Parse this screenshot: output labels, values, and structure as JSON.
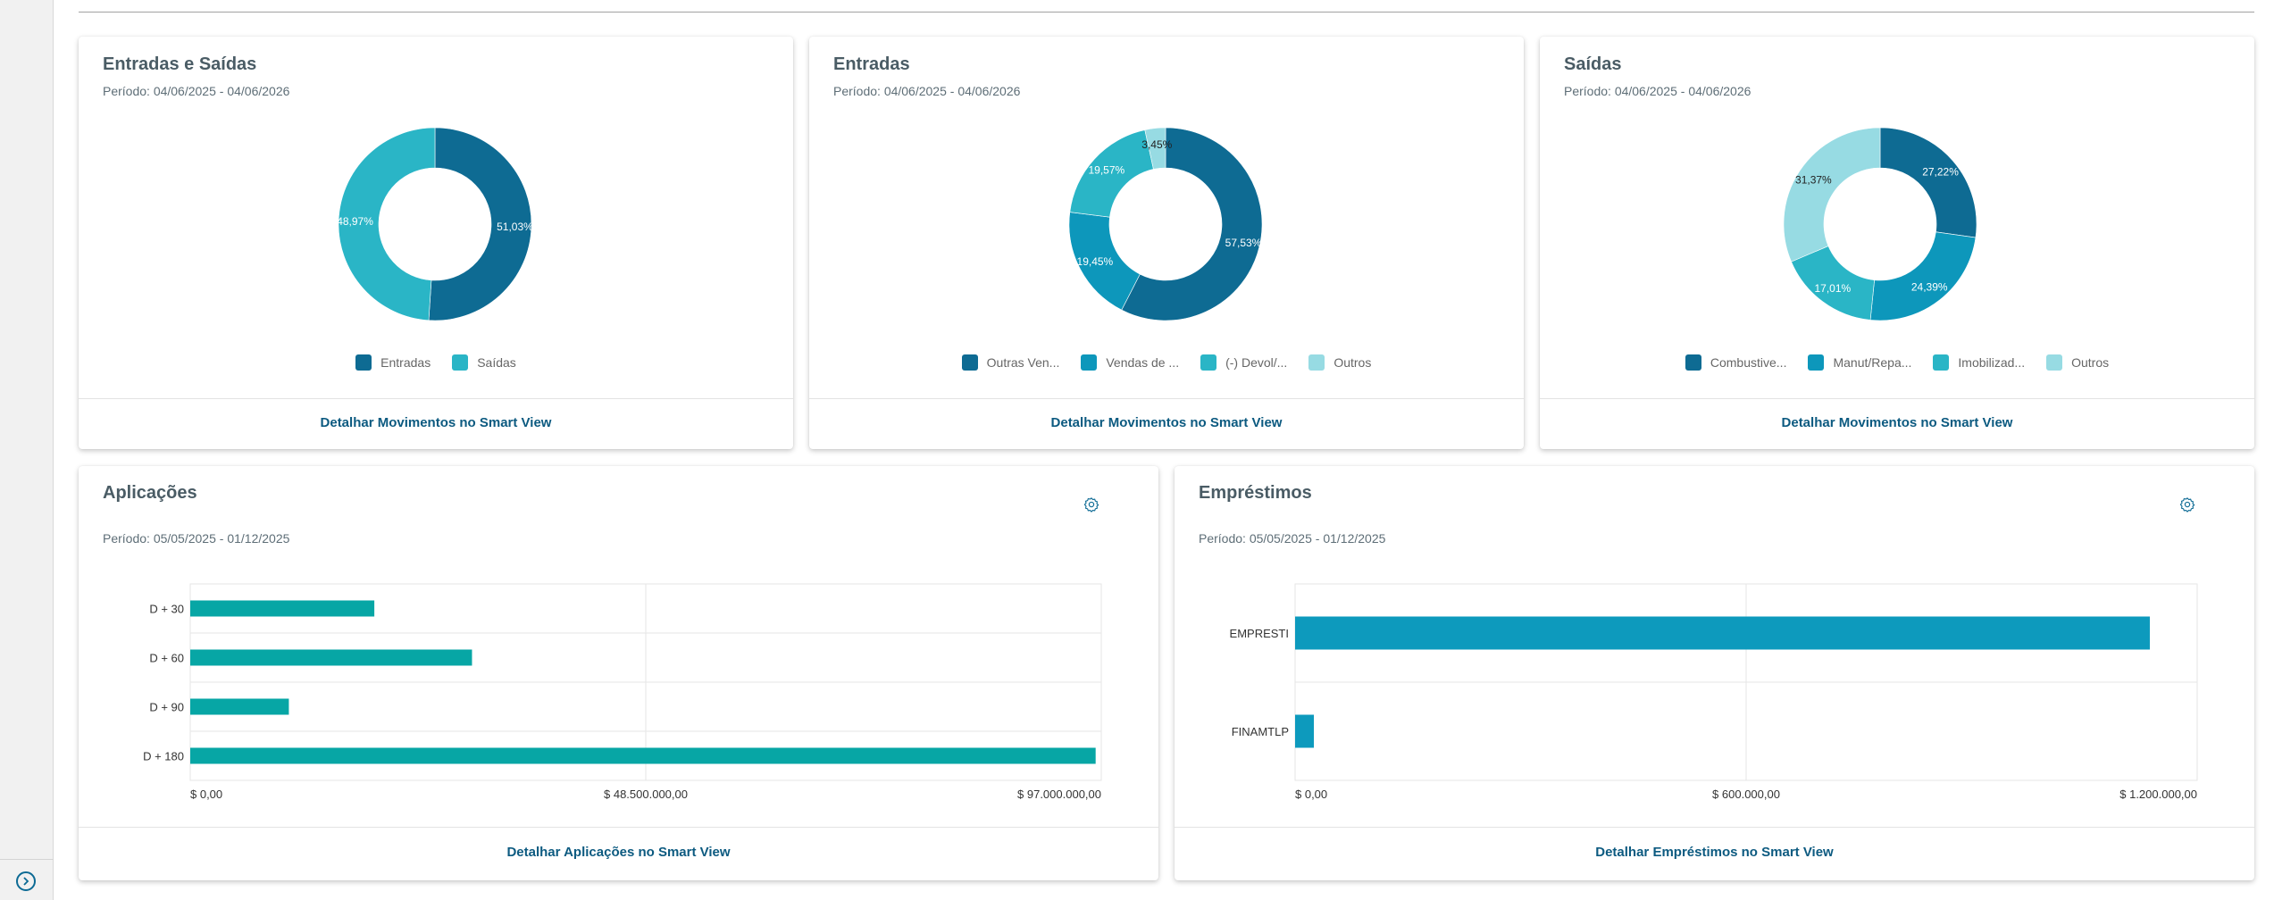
{
  "colors": {
    "dark": "#0e6b93",
    "medium": "#0d97bb",
    "light": "#2ab5c6",
    "pale": "#97dbe3",
    "teal_bar": "#07a6a5",
    "blue_bar": "#0d9abd",
    "link": "#0c5a80"
  },
  "sidebar": {
    "expand_icon": "chevron-right-circle-icon"
  },
  "cards": {
    "entradas_saidas": {
      "title": "Entradas e Saídas",
      "period": "Período: 04/06/2025 - 04/06/2026",
      "link": "Detalhar Movimentos no Smart View"
    },
    "entradas": {
      "title": "Entradas",
      "period": "Período: 04/06/2025 - 04/06/2026",
      "link": "Detalhar Movimentos no Smart View"
    },
    "saidas": {
      "title": "Saídas",
      "period": "Período: 04/06/2025 - 04/06/2026",
      "link": "Detalhar Movimentos no Smart View"
    },
    "aplicacoes": {
      "title": "Aplicações",
      "period": "Período: 05/05/2025 - 01/12/2025",
      "link": "Detalhar Aplicações no Smart View",
      "settings_icon": "gear-icon"
    },
    "emprestimos": {
      "title": "Empréstimos",
      "period": "Período: 05/05/2025 - 01/12/2025",
      "link": "Detalhar Empréstimos no Smart View",
      "settings_icon": "gear-icon"
    }
  },
  "chart_data": [
    {
      "id": "entradas_saidas",
      "type": "pie",
      "donut": true,
      "title": "Entradas e Saídas",
      "categories": [
        "Entradas",
        "Saídas"
      ],
      "values": [
        51.03,
        48.97
      ],
      "labels": [
        "51,03%",
        "48,97%"
      ],
      "colors": [
        "#0e6b93",
        "#2ab5c6"
      ],
      "legend": "bottom"
    },
    {
      "id": "entradas",
      "type": "pie",
      "donut": true,
      "title": "Entradas",
      "categories": [
        "Outras Ven...",
        "Vendas de ...",
        "(-) Devol/...",
        "Outros"
      ],
      "values": [
        57.53,
        19.45,
        19.57,
        3.45
      ],
      "labels": [
        "57,53%",
        "19,45%",
        "19,57%",
        "3,45%"
      ],
      "colors": [
        "#0e6b93",
        "#0d97bb",
        "#2ab5c6",
        "#97dbe3"
      ],
      "legend": "bottom"
    },
    {
      "id": "saidas",
      "type": "pie",
      "donut": true,
      "title": "Saídas",
      "categories": [
        "Combustive...",
        "Manut/Repa...",
        "Imobilizad...",
        "Outros"
      ],
      "values": [
        27.22,
        24.39,
        17.01,
        31.37
      ],
      "labels": [
        "27,22%",
        "24,39%",
        "17,01%",
        "31,37%"
      ],
      "colors": [
        "#0e6b93",
        "#0d97bb",
        "#2ab5c6",
        "#97dbe3"
      ],
      "legend": "bottom"
    },
    {
      "id": "aplicacoes",
      "type": "bar",
      "orientation": "horizontal",
      "title": "Aplicações",
      "categories": [
        "D + 30",
        "D + 60",
        "D + 90",
        "D + 180"
      ],
      "values": [
        19600000,
        30000000,
        10500000,
        96400000
      ],
      "xlim": [
        0,
        97000000
      ],
      "xticks": [
        "$ 0,00",
        "$ 48.500.000,00",
        "$ 97.000.000,00"
      ],
      "grid": true,
      "color": "#07a6a5"
    },
    {
      "id": "emprestimos",
      "type": "bar",
      "orientation": "horizontal",
      "title": "Empréstimos",
      "categories": [
        "EMPRESTI",
        "FINAMTLP"
      ],
      "values": [
        1137000,
        25000
      ],
      "xlim": [
        0,
        1200000
      ],
      "xticks": [
        "$ 0,00",
        "$ 600.000,00",
        "$ 1.200.000,00"
      ],
      "grid": true,
      "color": "#0d9abd"
    }
  ]
}
